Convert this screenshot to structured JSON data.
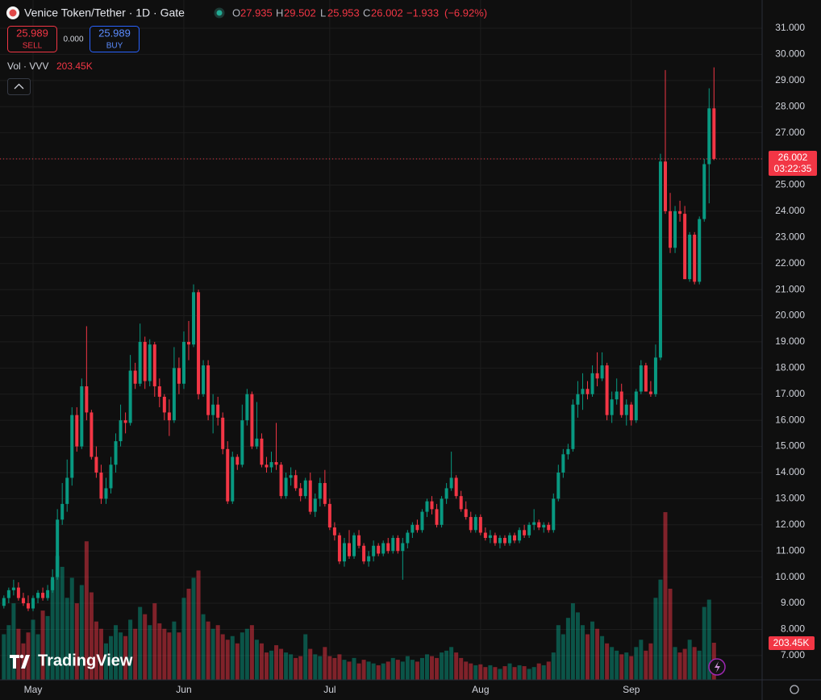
{
  "header": {
    "title": "Venice Token/Tether · 1D · Gate",
    "ohlc_labels": [
      "O",
      "H",
      "L",
      "C"
    ],
    "change": "−1.933",
    "change_pct": "(−6.92%)",
    "sell_price": 25.989,
    "sell_label": "SELL",
    "spread": "0.000",
    "buy_price": 25.989,
    "buy_label": "BUY",
    "volume_title": "Vol · VVV",
    "countdown": "03:22:35",
    "logo": "TradingView"
  },
  "chart_data": {
    "type": "candlestick",
    "up_color": "#089981",
    "down_color": "#f23645",
    "volume_up_color": "rgba(8,153,129,0.5)",
    "volume_down_color": "rgba(242,54,69,0.5)",
    "grid": true,
    "xlim": [
      -0.8,
      155.9
    ],
    "xticks": [
      {
        "value": 6,
        "label": "May"
      },
      {
        "value": 37,
        "label": "Jun"
      },
      {
        "value": 67,
        "label": "Jul"
      },
      {
        "value": 98,
        "label": "Aug"
      },
      {
        "value": 129,
        "label": "Sep"
      }
    ],
    "ylim": [
      6.07,
      32.08
    ],
    "yticks": [
      {
        "value": 7,
        "label": "7.000"
      },
      {
        "value": 8,
        "label": "8.000"
      },
      {
        "value": 9,
        "label": "9.000"
      },
      {
        "value": 10,
        "label": "10.000"
      },
      {
        "value": 11,
        "label": "11.000"
      },
      {
        "value": 12,
        "label": "12.000"
      },
      {
        "value": 13,
        "label": "13.000"
      },
      {
        "value": 14,
        "label": "14.000"
      },
      {
        "value": 15,
        "label": "15.000"
      },
      {
        "value": 16,
        "label": "16.000"
      },
      {
        "value": 17,
        "label": "17.000"
      },
      {
        "value": 18,
        "label": "18.000"
      },
      {
        "value": 19,
        "label": "19.000"
      },
      {
        "value": 20,
        "label": "20.000"
      },
      {
        "value": 21,
        "label": "21.000"
      },
      {
        "value": 22,
        "label": "22.000"
      },
      {
        "value": 23,
        "label": "23.000"
      },
      {
        "value": 24,
        "label": "24.000"
      },
      {
        "value": 25,
        "label": "25.000"
      },
      {
        "value": 26,
        "label": "26.000"
      },
      {
        "value": 27,
        "label": "27.000"
      },
      {
        "value": 28,
        "label": "28.000"
      },
      {
        "value": 29,
        "label": "29.000"
      },
      {
        "value": 30,
        "label": "30.000"
      },
      {
        "value": 31,
        "label": "31.000"
      }
    ],
    "open": [
      8.9,
      9.2,
      9.5,
      9.6,
      9.2,
      9.0,
      8.8,
      9.2,
      9.4,
      9.2,
      9.5,
      10.0,
      12.2,
      12.8,
      13.8,
      16.2,
      15.0,
      17.3,
      16.3,
      14.6,
      14.0,
      13.0,
      13.4,
      14.3,
      15.2,
      16.0,
      15.9,
      17.9,
      17.4,
      19.0,
      17.5,
      18.9,
      17.3,
      16.9,
      16.3,
      16.0,
      18.0,
      17.4,
      19.0,
      18.9,
      20.9,
      17.0,
      18.1,
      16.2,
      16.6,
      16.1,
      14.9,
      12.9,
      14.6,
      14.3,
      16.0,
      17.0,
      15.0,
      15.3,
      14.3,
      14.2,
      14.4,
      14.3,
      13.1,
      13.8,
      13.9,
      13.4,
      13.1,
      13.7,
      12.5,
      13.0,
      13.6,
      12.8,
      11.9,
      11.6,
      10.6,
      11.3,
      10.8,
      11.6,
      11.2,
      10.6,
      10.8,
      11.2,
      10.9,
      11.3,
      11.0,
      11.5,
      11.0,
      11.3,
      11.7,
      12.0,
      11.8,
      12.5,
      12.9,
      12.6,
      12.0,
      13.0,
      13.4,
      13.8,
      13.1,
      12.6,
      12.3,
      11.8,
      12.3,
      11.7,
      11.5,
      11.6,
      11.3,
      11.5,
      11.3,
      11.6,
      11.4,
      11.8,
      11.6,
      12.0,
      12.1,
      11.9,
      12.0,
      11.8,
      13.0,
      14.0,
      14.7,
      14.9,
      16.6,
      17.0,
      17.2,
      17.0,
      17.8,
      17.6,
      18.1,
      16.2,
      16.8,
      17.1,
      16.2,
      16.6,
      16.0,
      17.1,
      18.1,
      17.1,
      17.0,
      18.4,
      25.9,
      24.0,
      22.6,
      24.0,
      23.9,
      21.4,
      23.1,
      21.3,
      23.7,
      25.8,
      27.935
    ],
    "high": [
      9.3,
      9.6,
      9.9,
      9.8,
      9.4,
      9.3,
      9.3,
      9.5,
      9.6,
      9.7,
      10.3,
      12.6,
      13.6,
      14.5,
      16.5,
      16.5,
      17.6,
      19.6,
      16.4,
      15.0,
      14.3,
      13.8,
      14.6,
      15.5,
      16.6,
      16.3,
      18.5,
      18.2,
      19.7,
      19.2,
      19.1,
      19.0,
      17.6,
      17.0,
      16.8,
      18.8,
      18.4,
      19.4,
      19.8,
      21.2,
      21.0,
      18.3,
      18.3,
      17.0,
      16.9,
      16.3,
      15.2,
      14.8,
      14.7,
      16.6,
      17.2,
      17.1,
      16.7,
      15.5,
      14.6,
      14.8,
      15.9,
      14.4,
      14.0,
      14.2,
      14.1,
      13.6,
      13.8,
      14.0,
      13.2,
      13.8,
      14.1,
      13.0,
      12.1,
      11.7,
      11.5,
      11.8,
      11.7,
      11.8,
      11.3,
      11.0,
      11.4,
      11.3,
      11.4,
      11.5,
      11.6,
      11.6,
      11.5,
      11.8,
      12.1,
      12.2,
      12.6,
      13.0,
      13.1,
      12.8,
      13.1,
      13.6,
      14.8,
      13.9,
      13.3,
      12.9,
      12.5,
      12.4,
      12.4,
      11.9,
      11.8,
      11.7,
      11.6,
      11.6,
      11.7,
      11.7,
      11.9,
      12.0,
      12.1,
      12.6,
      12.2,
      12.1,
      12.1,
      13.2,
      14.3,
      14.9,
      15.1,
      16.8,
      17.5,
      17.8,
      17.5,
      18.1,
      18.6,
      18.6,
      18.2,
      17.1,
      17.6,
      17.4,
      16.8,
      16.7,
      17.2,
      18.3,
      18.2,
      17.5,
      18.9,
      26.2,
      29.4,
      24.7,
      24.2,
      24.4,
      24.2,
      23.2,
      23.2,
      23.8,
      26.0,
      28.7,
      29.502
    ],
    "low": [
      8.8,
      9.0,
      9.3,
      9.1,
      8.9,
      8.7,
      8.7,
      9.0,
      9.1,
      9.1,
      9.4,
      9.9,
      12.0,
      12.5,
      13.5,
      14.8,
      14.9,
      16.0,
      14.5,
      13.8,
      12.8,
      12.8,
      13.2,
      14.0,
      15.0,
      15.5,
      15.8,
      17.2,
      17.3,
      17.2,
      17.3,
      16.9,
      16.5,
      16.0,
      15.4,
      15.9,
      17.0,
      17.2,
      18.3,
      18.8,
      16.8,
      16.9,
      16.0,
      15.5,
      15.8,
      14.7,
      12.8,
      12.8,
      14.1,
      14.2,
      15.8,
      14.9,
      14.9,
      14.2,
      14.0,
      14.0,
      14.1,
      13.0,
      13.0,
      13.5,
      13.3,
      12.9,
      13.0,
      12.4,
      12.3,
      12.7,
      12.7,
      11.8,
      11.4,
      10.5,
      10.4,
      10.7,
      10.7,
      11.1,
      10.5,
      10.4,
      10.6,
      10.8,
      10.8,
      10.9,
      10.9,
      10.9,
      9.9,
      11.1,
      11.5,
      11.7,
      11.7,
      12.3,
      12.4,
      11.9,
      11.9,
      12.8,
      13.3,
      13.0,
      12.5,
      12.2,
      11.7,
      11.7,
      11.6,
      11.4,
      11.3,
      11.2,
      11.1,
      11.2,
      11.2,
      11.3,
      11.3,
      11.5,
      11.5,
      11.8,
      11.8,
      11.7,
      11.7,
      11.7,
      12.9,
      13.8,
      14.5,
      14.8,
      16.1,
      16.4,
      16.8,
      16.9,
      17.3,
      17.5,
      16.0,
      15.9,
      16.6,
      16.1,
      15.8,
      15.8,
      15.9,
      17.0,
      17.1,
      16.9,
      16.9,
      18.3,
      23.9,
      22.4,
      22.4,
      23.6,
      21.4,
      21.3,
      21.2,
      21.2,
      23.6,
      24.3,
      25.953
    ],
    "close": [
      9.2,
      9.5,
      9.6,
      9.2,
      9.0,
      8.8,
      9.2,
      9.4,
      9.2,
      9.5,
      10.0,
      12.2,
      12.8,
      13.8,
      16.2,
      15.0,
      17.3,
      16.3,
      14.6,
      14.0,
      13.0,
      13.4,
      14.3,
      15.2,
      16.0,
      15.9,
      17.9,
      17.4,
      19.0,
      17.5,
      18.9,
      17.3,
      16.9,
      16.3,
      16.0,
      18.0,
      17.4,
      19.0,
      18.9,
      20.9,
      17.0,
      18.1,
      16.2,
      16.6,
      16.1,
      14.9,
      12.9,
      14.6,
      14.3,
      16.0,
      17.0,
      15.0,
      15.3,
      14.3,
      14.2,
      14.4,
      14.3,
      13.1,
      13.8,
      13.9,
      13.4,
      13.1,
      13.7,
      12.5,
      13.0,
      13.6,
      12.8,
      11.9,
      11.6,
      10.6,
      11.3,
      10.8,
      11.6,
      11.2,
      10.6,
      10.8,
      11.2,
      10.9,
      11.3,
      11.0,
      11.5,
      11.0,
      11.3,
      11.7,
      12.0,
      11.8,
      12.5,
      12.9,
      12.6,
      12.0,
      13.0,
      13.4,
      13.8,
      13.1,
      12.6,
      12.3,
      11.8,
      12.3,
      11.7,
      11.5,
      11.6,
      11.3,
      11.5,
      11.3,
      11.6,
      11.4,
      11.8,
      11.6,
      12.0,
      12.1,
      11.9,
      12.0,
      11.8,
      13.0,
      14.0,
      14.7,
      14.9,
      16.6,
      17.0,
      17.2,
      17.0,
      17.8,
      17.6,
      18.1,
      16.2,
      16.8,
      17.1,
      16.2,
      16.6,
      16.0,
      17.1,
      18.1,
      17.1,
      17.0,
      18.4,
      25.9,
      24.0,
      22.6,
      24.0,
      23.9,
      21.4,
      23.1,
      21.3,
      23.7,
      25.8,
      27.935,
      26.002
    ],
    "volume": [
      250,
      300,
      420,
      280,
      200,
      260,
      330,
      250,
      380,
      350,
      550,
      680,
      620,
      450,
      560,
      420,
      520,
      760,
      480,
      320,
      280,
      200,
      240,
      300,
      260,
      240,
      330,
      280,
      400,
      360,
      300,
      420,
      310,
      280,
      260,
      320,
      260,
      450,
      500,
      560,
      600,
      360,
      320,
      280,
      300,
      250,
      220,
      240,
      200,
      260,
      280,
      300,
      220,
      200,
      150,
      160,
      190,
      170,
      150,
      140,
      120,
      130,
      250,
      170,
      140,
      130,
      180,
      130,
      120,
      140,
      110,
      100,
      120,
      90,
      110,
      100,
      90,
      80,
      90,
      100,
      120,
      110,
      100,
      130,
      110,
      100,
      120,
      140,
      130,
      120,
      150,
      160,
      180,
      150,
      120,
      100,
      90,
      80,
      85,
      70,
      80,
      70,
      60,
      75,
      90,
      70,
      80,
      75,
      60,
      70,
      90,
      80,
      100,
      150,
      300,
      250,
      340,
      420,
      370,
      300,
      250,
      320,
      280,
      240,
      200,
      180,
      160,
      140,
      150,
      130,
      180,
      220,
      160,
      200,
      450,
      550,
      920,
      500,
      180,
      150,
      170,
      220,
      180,
      160,
      400,
      440,
      203.45
    ],
    "volume_last_label": "203.45K"
  }
}
